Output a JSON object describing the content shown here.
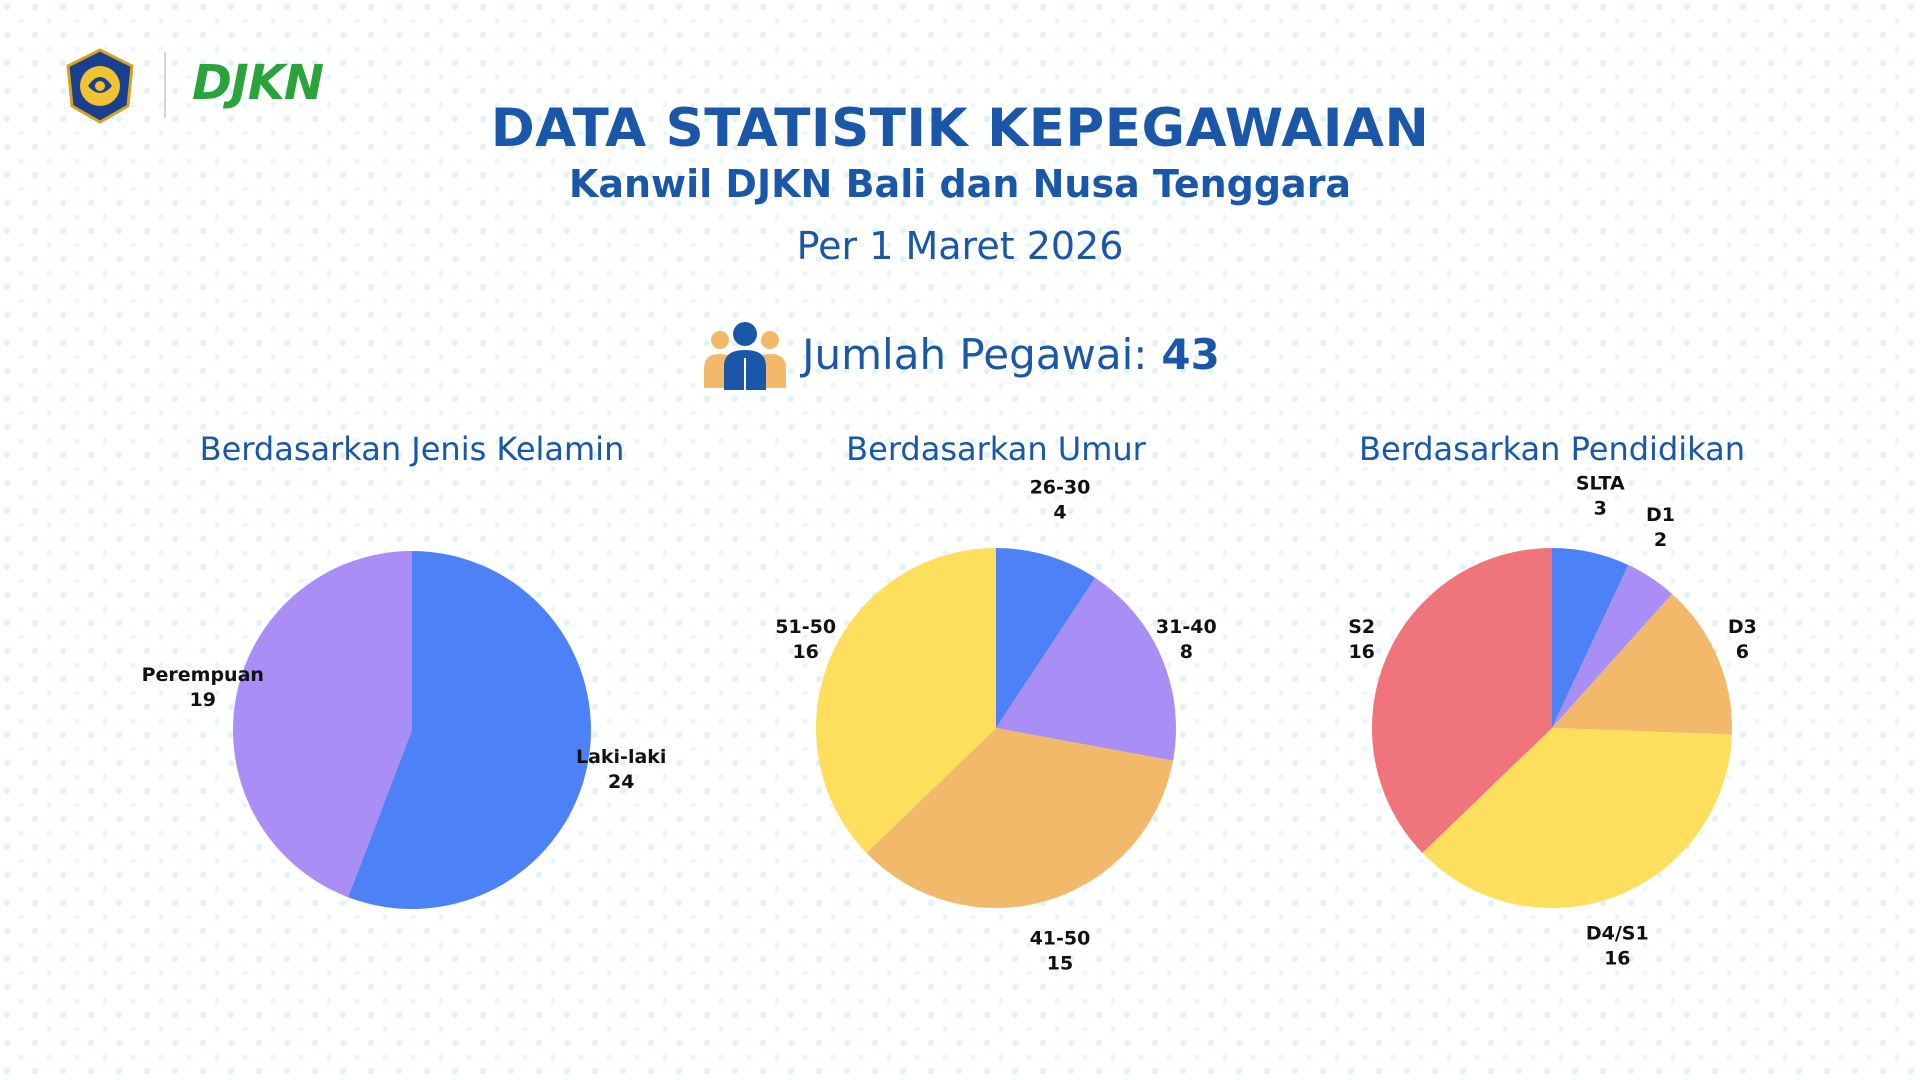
{
  "header": {
    "brand_text": "DJKN",
    "title": "DATA STATISTIK KEPEGAWAIAN",
    "subtitle": "Kanwil DJKN Bali dan Nusa Tenggara",
    "date": "Per 1 Maret 2026"
  },
  "summary": {
    "label": "Jumlah Pegawai:",
    "value": "43"
  },
  "colors": {
    "title": "#1a57a8",
    "brand_green": "#2aa33a",
    "blue": "#4d82f7",
    "purple": "#a98ef5",
    "orange": "#f3b96a",
    "yellow": "#fedf5d",
    "red": "#ef747b"
  },
  "icons": [
    "kemenkeu-emblem-icon",
    "people-group-icon"
  ],
  "chart_data": [
    {
      "type": "pie",
      "title": "Berdasarkan Jenis Kelamin",
      "slices": [
        {
          "label": "Laki-laki",
          "value": 24,
          "color": "#4d82f7"
        },
        {
          "label": "Perempuan",
          "value": 19,
          "color": "#a98ef5"
        }
      ]
    },
    {
      "type": "pie",
      "title": "Berdasarkan Umur",
      "slices": [
        {
          "label": "26-30",
          "value": 4,
          "color": "#4d82f7"
        },
        {
          "label": "31-40",
          "value": 8,
          "color": "#a98ef5"
        },
        {
          "label": "41-50",
          "value": 15,
          "color": "#f3b96a"
        },
        {
          "label": "51-50",
          "value": 16,
          "color": "#fedf5d"
        }
      ]
    },
    {
      "type": "pie",
      "title": "Berdasarkan Pendidikan",
      "slices": [
        {
          "label": "SLTA",
          "value": 3,
          "color": "#4d82f7"
        },
        {
          "label": "D1",
          "value": 2,
          "color": "#a98ef5"
        },
        {
          "label": "D3",
          "value": 6,
          "color": "#f3b96a"
        },
        {
          "label": "D4/S1",
          "value": 16,
          "color": "#fedf5d"
        },
        {
          "label": "S2",
          "value": 16,
          "color": "#ef747b"
        }
      ]
    }
  ]
}
